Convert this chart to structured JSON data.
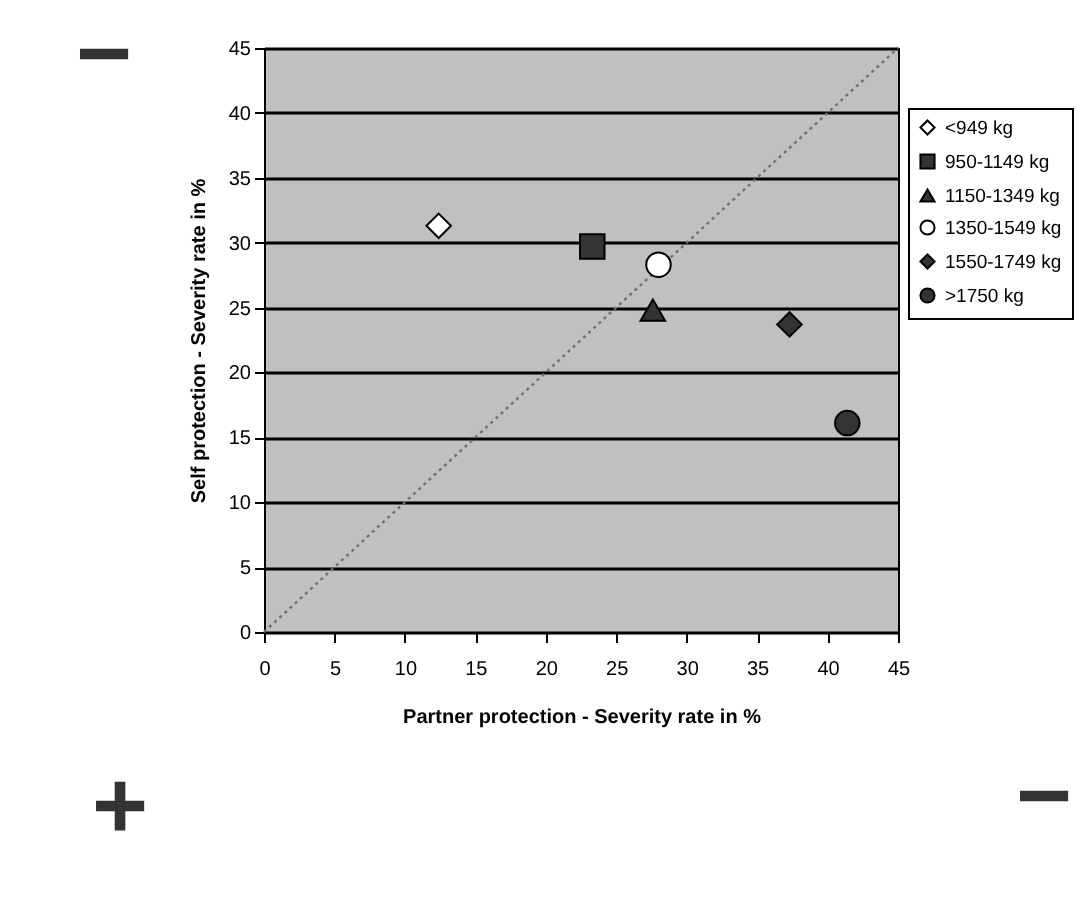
{
  "chart_data": {
    "type": "scatter",
    "xlabel": "Partner protection - Severity rate in %",
    "ylabel": "Self protection - Severity rate in %",
    "xlim": [
      0,
      45
    ],
    "ylim": [
      0,
      45
    ],
    "xticks": [
      0,
      5,
      10,
      15,
      20,
      25,
      30,
      35,
      40,
      45
    ],
    "yticks": [
      0,
      5,
      10,
      15,
      20,
      25,
      30,
      35,
      40,
      45
    ],
    "grid": "y",
    "legend": "right",
    "annotations": [
      "−",
      "+",
      "−"
    ],
    "series": [
      {
        "type": "line",
        "color": "#707070",
        "line_style": "dotted",
        "marker": "none",
        "x": [
          0,
          45
        ],
        "values": [
          0,
          45
        ]
      },
      {
        "name": "<949 kg",
        "color": "#ffffff",
        "marker": "diamond",
        "x": [
          12.4
        ],
        "values": [
          31.3
        ]
      },
      {
        "name": "950-1149 kg",
        "color": "#333333",
        "marker": "square",
        "x": [
          23.3
        ],
        "values": [
          29.7
        ]
      },
      {
        "name": "1150-1349 kg",
        "color": "#333333",
        "marker": "triangle",
        "x": [
          27.6
        ],
        "values": [
          24.8
        ]
      },
      {
        "name": "1350-1549 kg",
        "color": "#ffffff",
        "marker": "circle",
        "x": [
          28.0
        ],
        "values": [
          28.3
        ]
      },
      {
        "name": "1550-1749 kg",
        "color": "#333333",
        "marker": "diamond",
        "x": [
          37.3
        ],
        "values": [
          23.7
        ]
      },
      {
        "name": ">1750 kg",
        "color": "#333333",
        "marker": "circle",
        "x": [
          41.4
        ],
        "values": [
          16.1
        ]
      }
    ]
  }
}
